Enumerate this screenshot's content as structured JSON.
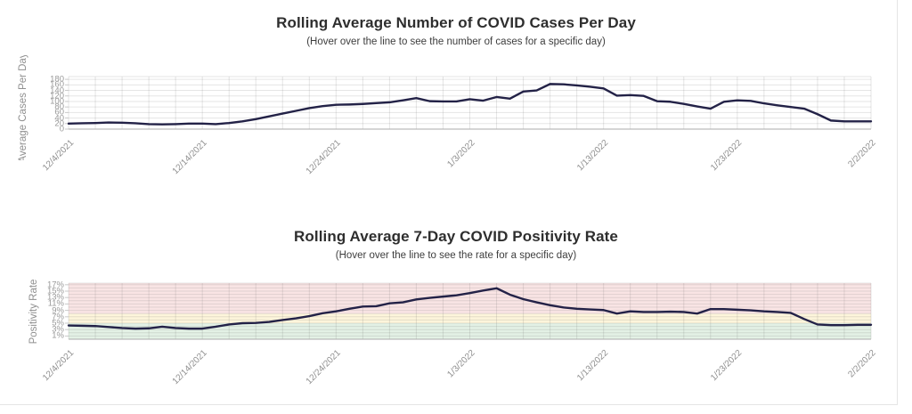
{
  "page": {
    "background": "#ffffff",
    "frame_border_color": "#e5e5e5"
  },
  "chart_data": [
    {
      "type": "line",
      "title": "Rolling Average Number of COVID Cases Per Day",
      "subtitle": "(Hover over the line to see the number of cases for a specific day)",
      "ylabel": "Average Cases Per Day",
      "xlabel": "",
      "grid": true,
      "legend": "none",
      "line_color": "#232247",
      "ylim": [
        0,
        190
      ],
      "y_ticks": [
        0,
        20,
        40,
        60,
        80,
        100,
        120,
        140,
        160,
        180
      ],
      "y_tick_labels": [
        "0",
        "20",
        "40",
        "60",
        "80",
        "100",
        "120",
        "140",
        "160",
        "180"
      ],
      "x_tick_days": [
        0,
        10,
        20,
        30,
        40,
        50,
        60
      ],
      "x_tick_labels": [
        "12/4/2021",
        "12/14/2021",
        "12/24/2021",
        "1/3/2022",
        "1/13/2022",
        "1/23/2022",
        "2/2/2022"
      ],
      "x": [
        "12/4/2021",
        "12/5/2021",
        "12/6/2021",
        "12/7/2021",
        "12/8/2021",
        "12/9/2021",
        "12/10/2021",
        "12/11/2021",
        "12/12/2021",
        "12/13/2021",
        "12/14/2021",
        "12/15/2021",
        "12/16/2021",
        "12/17/2021",
        "12/18/2021",
        "12/19/2021",
        "12/20/2021",
        "12/21/2021",
        "12/22/2021",
        "12/23/2021",
        "12/24/2021",
        "12/25/2021",
        "12/26/2021",
        "12/27/2021",
        "12/28/2021",
        "12/29/2021",
        "12/30/2021",
        "12/31/2021",
        "1/1/2022",
        "1/2/2022",
        "1/3/2022",
        "1/4/2022",
        "1/5/2022",
        "1/6/2022",
        "1/7/2022",
        "1/8/2022",
        "1/9/2022",
        "1/10/2022",
        "1/11/2022",
        "1/12/2022",
        "1/13/2022",
        "1/14/2022",
        "1/15/2022",
        "1/16/2022",
        "1/17/2022",
        "1/18/2022",
        "1/19/2022",
        "1/20/2022",
        "1/21/2022",
        "1/22/2022",
        "1/23/2022",
        "1/24/2022",
        "1/25/2022",
        "1/26/2022",
        "1/27/2022",
        "1/28/2022",
        "1/29/2022",
        "1/30/2022",
        "1/31/2022",
        "2/1/2022",
        "2/2/2022"
      ],
      "series": [
        {
          "name": "Average cases per day",
          "values": [
            20,
            21,
            22,
            24,
            23,
            21,
            18,
            17,
            18,
            20,
            20,
            18,
            22,
            28,
            36,
            46,
            56,
            66,
            76,
            83,
            88,
            89,
            91,
            94,
            97,
            104,
            112,
            101,
            100,
            100,
            108,
            103,
            116,
            110,
            136,
            140,
            163,
            162,
            158,
            153,
            147,
            121,
            123,
            120,
            101,
            99,
            91,
            82,
            74,
            99,
            104,
            102,
            93,
            86,
            80,
            74,
            54,
            31,
            28,
            28,
            28
          ]
        }
      ]
    },
    {
      "type": "line",
      "title": "Rolling Average 7-Day COVID Positivity Rate",
      "subtitle": "(Hover over the line to see the rate for a specific day)",
      "ylabel": "Positivity Rate",
      "xlabel": "",
      "grid": true,
      "legend": "none",
      "line_color": "#232247",
      "ylim": [
        0,
        17.5
      ],
      "y_ticks": [
        1,
        3,
        5,
        7,
        9,
        11,
        13,
        15,
        17
      ],
      "y_tick_labels": [
        "1%",
        "3%",
        "5%",
        "7%",
        "9%",
        "11%",
        "13%",
        "15%",
        "17%"
      ],
      "x_tick_days": [
        0,
        10,
        20,
        30,
        40,
        50,
        60
      ],
      "x_tick_labels": [
        "12/4/2021",
        "12/14/2021",
        "12/24/2021",
        "1/3/2022",
        "1/13/2022",
        "1/23/2022",
        "2/2/2022"
      ],
      "bands": [
        {
          "from": 0,
          "to": 5,
          "color": "#e3f1e5"
        },
        {
          "from": 5,
          "to": 8,
          "color": "#fdf5db"
        },
        {
          "from": 8,
          "to": 17.5,
          "color": "#f9e4e4"
        }
      ],
      "x": [
        "12/4/2021",
        "12/5/2021",
        "12/6/2021",
        "12/7/2021",
        "12/8/2021",
        "12/9/2021",
        "12/10/2021",
        "12/11/2021",
        "12/12/2021",
        "12/13/2021",
        "12/14/2021",
        "12/15/2021",
        "12/16/2021",
        "12/17/2021",
        "12/18/2021",
        "12/19/2021",
        "12/20/2021",
        "12/21/2021",
        "12/22/2021",
        "12/23/2021",
        "12/24/2021",
        "12/25/2021",
        "12/26/2021",
        "12/27/2021",
        "12/28/2021",
        "12/29/2021",
        "12/30/2021",
        "12/31/2021",
        "1/1/2022",
        "1/2/2022",
        "1/3/2022",
        "1/4/2022",
        "1/5/2022",
        "1/6/2022",
        "1/7/2022",
        "1/8/2022",
        "1/9/2022",
        "1/10/2022",
        "1/11/2022",
        "1/12/2022",
        "1/13/2022",
        "1/14/2022",
        "1/15/2022",
        "1/16/2022",
        "1/17/2022",
        "1/18/2022",
        "1/19/2022",
        "1/20/2022",
        "1/21/2022",
        "1/22/2022",
        "1/23/2022",
        "1/24/2022",
        "1/25/2022",
        "1/26/2022",
        "1/27/2022",
        "1/28/2022",
        "1/29/2022",
        "1/30/2022",
        "1/31/2022",
        "2/1/2022",
        "2/2/2022"
      ],
      "series": [
        {
          "name": "7-day positivity rate (%)",
          "values": [
            4.3,
            4.2,
            4.1,
            3.8,
            3.5,
            3.3,
            3.4,
            3.9,
            3.5,
            3.3,
            3.3,
            3.9,
            4.6,
            5.0,
            5.1,
            5.4,
            6.0,
            6.5,
            7.2,
            8.1,
            8.7,
            9.5,
            10.2,
            10.3,
            11.2,
            11.5,
            12.4,
            12.9,
            13.3,
            13.7,
            14.4,
            15.2,
            15.9,
            13.9,
            12.5,
            11.5,
            10.6,
            9.9,
            9.5,
            9.3,
            9.1,
            8.0,
            8.7,
            8.5,
            8.5,
            8.6,
            8.5,
            8.0,
            9.4,
            9.4,
            9.2,
            9.0,
            8.7,
            8.5,
            8.2,
            6.3,
            4.6,
            4.4,
            4.4,
            4.5,
            4.5
          ]
        }
      ]
    }
  ]
}
